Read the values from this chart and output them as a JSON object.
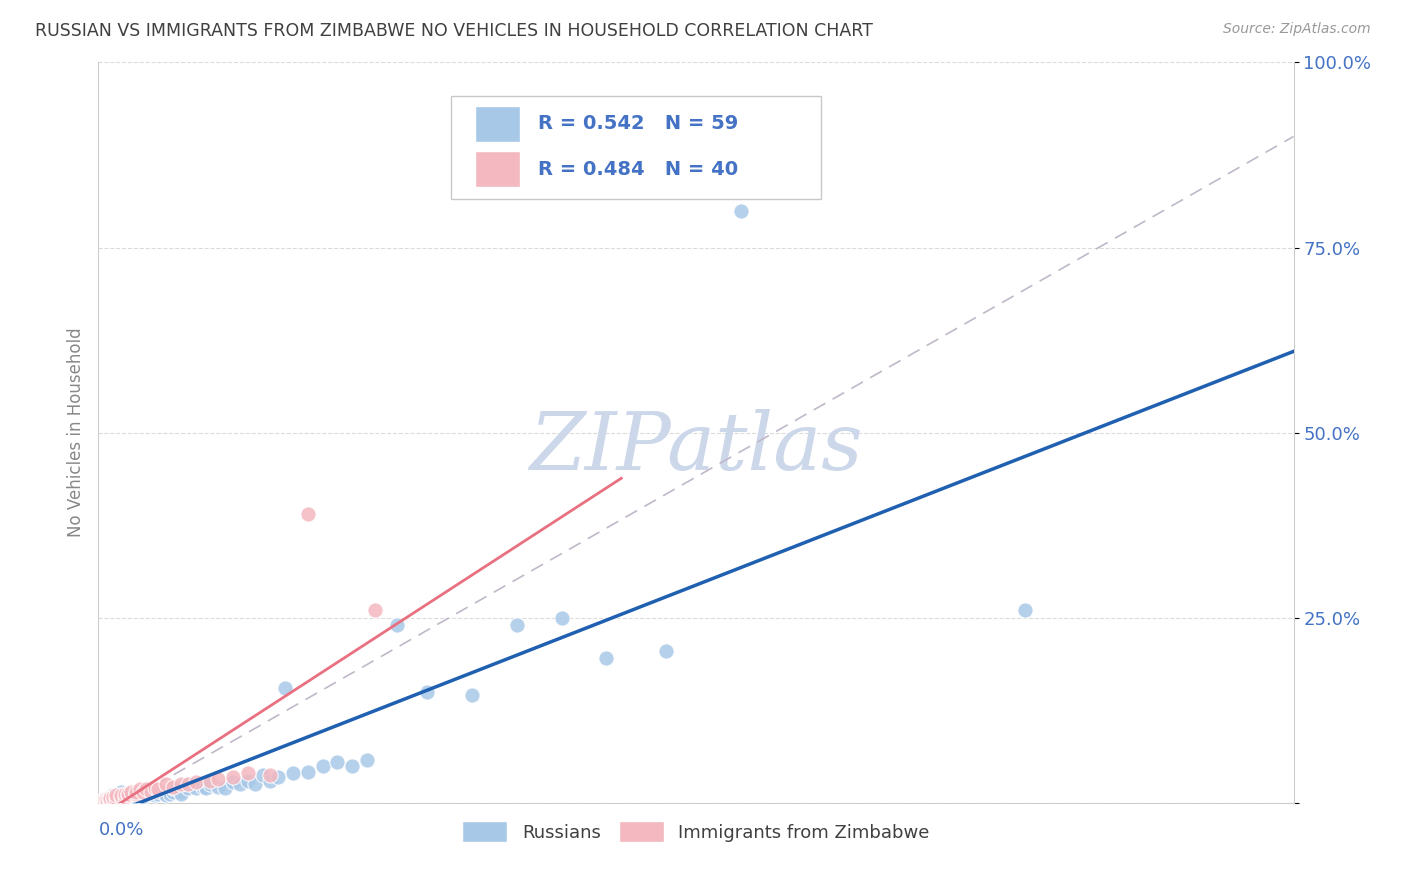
{
  "title": "RUSSIAN VS IMMIGRANTS FROM ZIMBABWE NO VEHICLES IN HOUSEHOLD CORRELATION CHART",
  "source": "Source: ZipAtlas.com",
  "ylabel": "No Vehicles in Household",
  "xmin": 0.0,
  "xmax": 0.8,
  "ymin": 0.0,
  "ymax": 1.0,
  "yticks": [
    0.0,
    0.25,
    0.5,
    0.75,
    1.0
  ],
  "ytick_labels": [
    "",
    "25.0%",
    "50.0%",
    "75.0%",
    "100.0%"
  ],
  "russian_R": 0.542,
  "russian_N": 59,
  "zimbabwe_R": 0.484,
  "zimbabwe_N": 40,
  "blue_scatter_color": "#a8c8e8",
  "pink_scatter_color": "#f4b8c0",
  "blue_line_color": "#2060b0",
  "pink_line_color": "#e87080",
  "gray_dashed_color": "#c0b8c8",
  "watermark_color": "#ccd8ea",
  "legend_text_color": "#4472c4",
  "title_color": "#404040",
  "axis_label_color": "#888888",
  "tick_label_color": "#4472c4",
  "grid_color": "#d8d8d8",
  "russians_x": [
    0.005,
    0.008,
    0.01,
    0.012,
    0.015,
    0.015,
    0.018,
    0.02,
    0.02,
    0.022,
    0.025,
    0.025,
    0.028,
    0.03,
    0.03,
    0.032,
    0.035,
    0.035,
    0.038,
    0.04,
    0.04,
    0.042,
    0.045,
    0.048,
    0.05,
    0.05,
    0.055,
    0.055,
    0.058,
    0.06,
    0.065,
    0.07,
    0.072,
    0.075,
    0.08,
    0.085,
    0.09,
    0.095,
    0.1,
    0.105,
    0.11,
    0.115,
    0.12,
    0.125,
    0.13,
    0.14,
    0.15,
    0.16,
    0.17,
    0.18,
    0.2,
    0.22,
    0.25,
    0.28,
    0.31,
    0.34,
    0.38,
    0.43,
    0.62
  ],
  "russians_y": [
    0.005,
    0.008,
    0.01,
    0.01,
    0.012,
    0.015,
    0.005,
    0.008,
    0.012,
    0.01,
    0.008,
    0.012,
    0.01,
    0.008,
    0.015,
    0.01,
    0.015,
    0.012,
    0.01,
    0.012,
    0.018,
    0.015,
    0.01,
    0.012,
    0.015,
    0.02,
    0.015,
    0.012,
    0.025,
    0.02,
    0.02,
    0.022,
    0.02,
    0.025,
    0.022,
    0.02,
    0.028,
    0.025,
    0.03,
    0.025,
    0.038,
    0.03,
    0.035,
    0.155,
    0.04,
    0.042,
    0.05,
    0.055,
    0.05,
    0.058,
    0.24,
    0.15,
    0.145,
    0.24,
    0.25,
    0.195,
    0.205,
    0.8,
    0.26
  ],
  "zimbabwe_x": [
    0.002,
    0.003,
    0.004,
    0.005,
    0.005,
    0.006,
    0.007,
    0.008,
    0.008,
    0.01,
    0.01,
    0.012,
    0.012,
    0.015,
    0.015,
    0.018,
    0.018,
    0.02,
    0.02,
    0.022,
    0.025,
    0.025,
    0.028,
    0.03,
    0.032,
    0.035,
    0.038,
    0.04,
    0.045,
    0.05,
    0.055,
    0.06,
    0.065,
    0.075,
    0.08,
    0.09,
    0.1,
    0.115,
    0.14,
    0.185
  ],
  "zimbabwe_y": [
    0.002,
    0.003,
    0.004,
    0.003,
    0.005,
    0.004,
    0.005,
    0.004,
    0.006,
    0.005,
    0.008,
    0.006,
    0.01,
    0.008,
    0.01,
    0.008,
    0.012,
    0.01,
    0.012,
    0.015,
    0.012,
    0.015,
    0.018,
    0.015,
    0.018,
    0.015,
    0.02,
    0.018,
    0.025,
    0.022,
    0.025,
    0.025,
    0.028,
    0.03,
    0.032,
    0.035,
    0.04,
    0.038,
    0.39,
    0.26
  ]
}
